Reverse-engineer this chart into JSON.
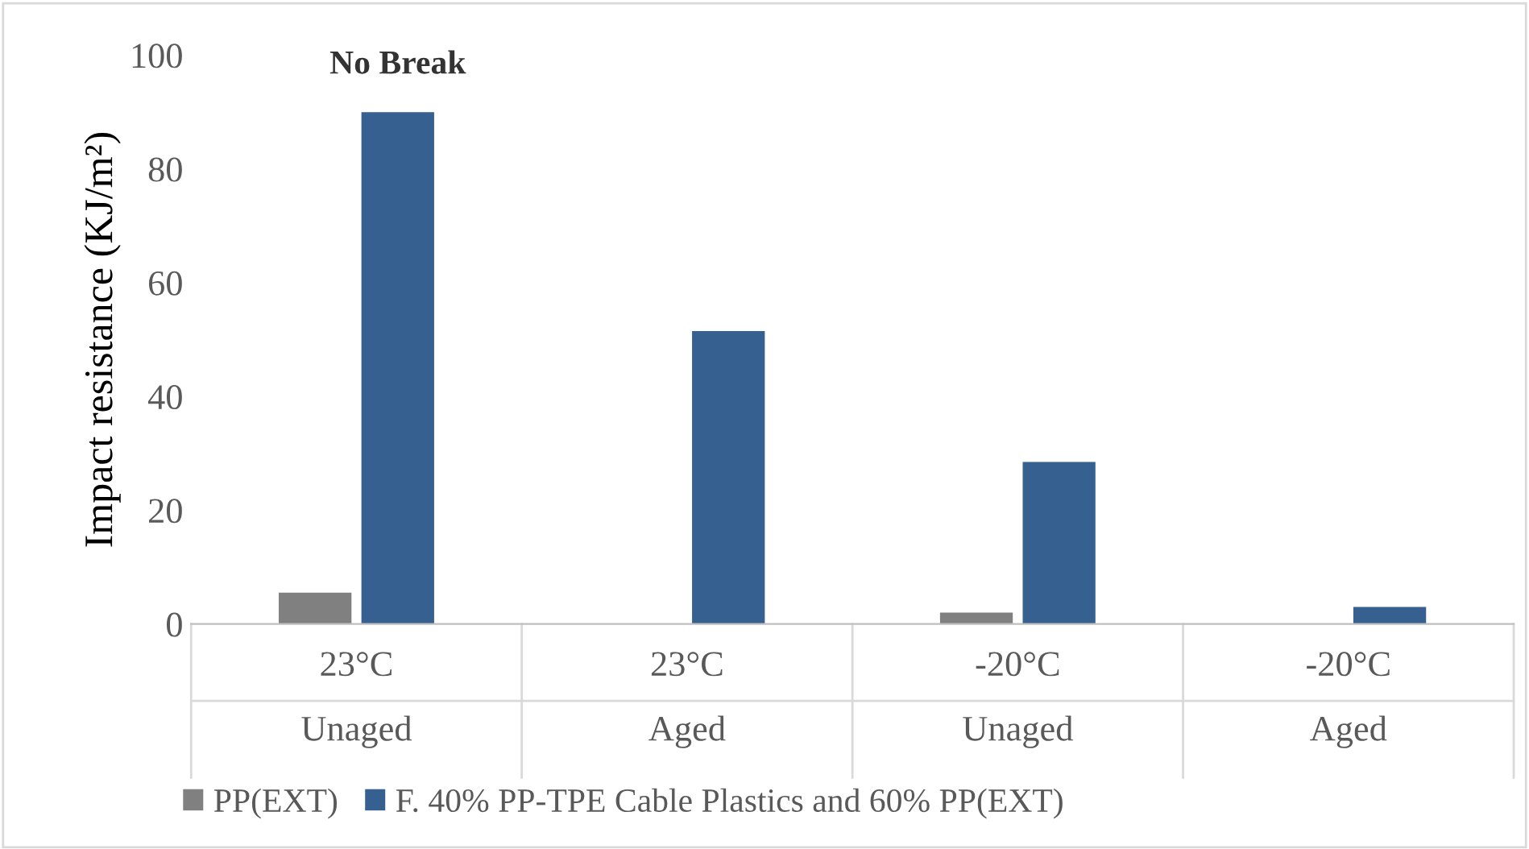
{
  "chart_data": {
    "type": "bar",
    "ylabel": "Impact resistance (KJ/m²)",
    "categories": [
      "23°C\nUnaged",
      "23°C\nAged",
      "-20°C\nUnaged",
      "-20°C\nAged"
    ],
    "series": [
      {
        "name": "PP(EXT)",
        "color": "#808080",
        "values": [
          5.5,
          null,
          2,
          null
        ]
      },
      {
        "name": "F. 40% PP-TPE Cable Plastics and 60% PP(EXT)",
        "color": "#35608f",
        "values": [
          90,
          51.5,
          28.5,
          3
        ]
      }
    ],
    "ylim": [
      0,
      100
    ],
    "yticks": [
      0,
      20,
      40,
      60,
      80,
      100
    ],
    "annotations": [
      {
        "text": "No Break",
        "x": "23°C\nUnaged",
        "y": 90
      }
    ],
    "grid": false,
    "legend": "bottom"
  }
}
